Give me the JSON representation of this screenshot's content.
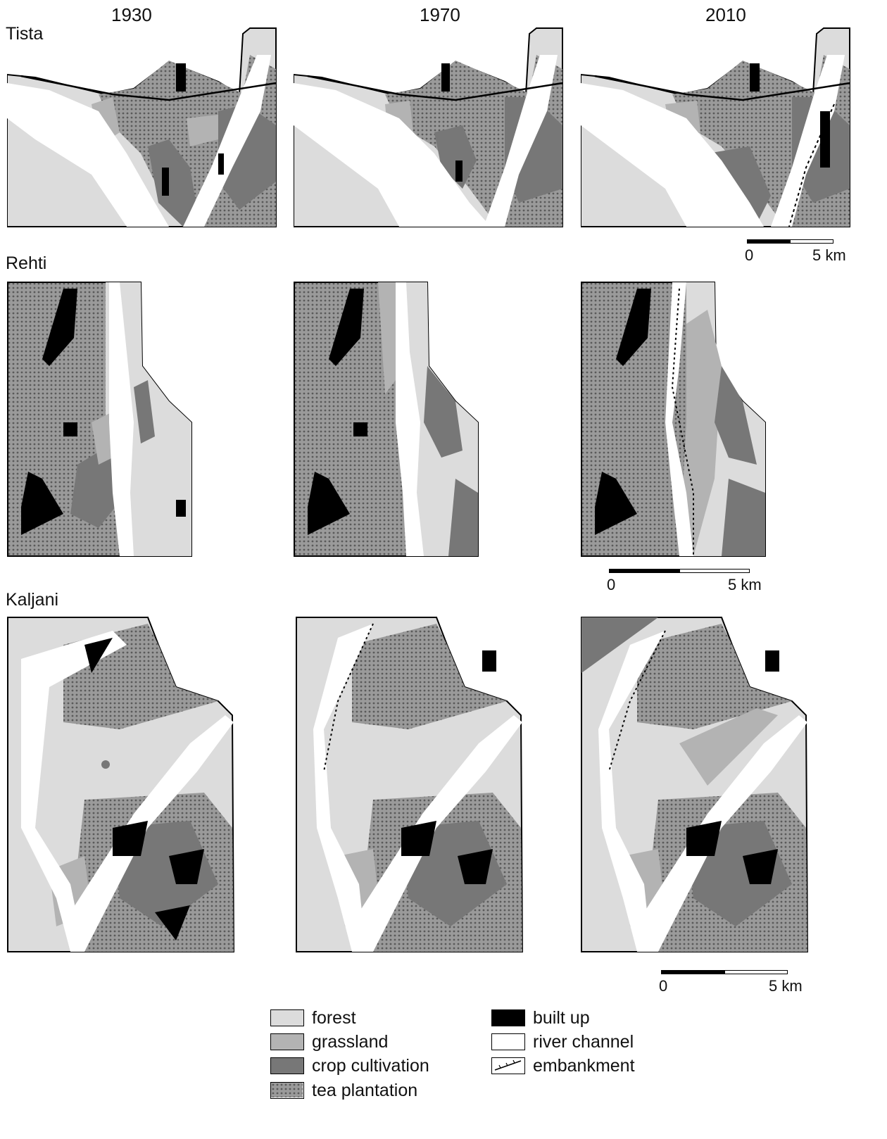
{
  "years": [
    "1930",
    "1970",
    "2010"
  ],
  "rivers": [
    "Tista",
    "Rehti",
    "Kaljani"
  ],
  "scale": {
    "start": "0",
    "end": "5 km"
  },
  "legend": [
    {
      "key": "forest",
      "label": "forest",
      "color": "#dcdcdc"
    },
    {
      "key": "grassland",
      "label": "grassland",
      "color": "#b3b3b3"
    },
    {
      "key": "crop",
      "label": "crop cultivation",
      "color": "#777777"
    },
    {
      "key": "tea",
      "label": "tea plantation",
      "color": "#8f8f8f"
    },
    {
      "key": "built",
      "label": "built up",
      "color": "#000000"
    },
    {
      "key": "river",
      "label": "river channel",
      "color": "#ffffff"
    },
    {
      "key": "embankment",
      "label": "embankment",
      "color": "#000000"
    }
  ]
}
